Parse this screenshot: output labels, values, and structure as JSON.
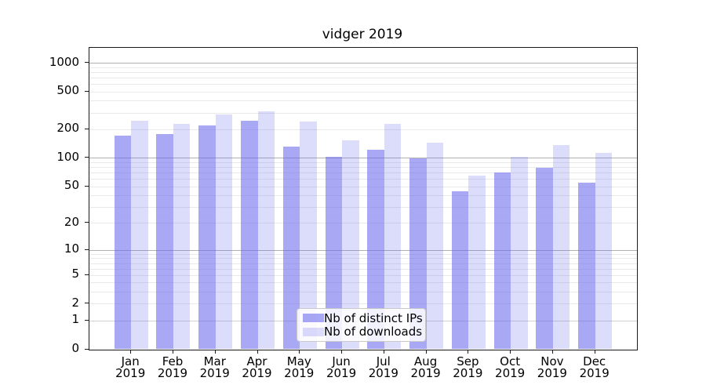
{
  "title": "vidger 2019",
  "colors": {
    "bar_distinct_ips": "rgba(102,102,238,0.57)",
    "bar_downloads": "rgba(102,102,238,0.23)",
    "grid_major": "#b0b0b0",
    "grid_unit": "#d0d0d0",
    "grid_minor": "#e9e9e9",
    "spine": "#1a1a1a",
    "text": "#000000",
    "legend_border": "#c9c9c9"
  },
  "x_axis": {
    "months": [
      "Jan",
      "Feb",
      "Mar",
      "Apr",
      "May",
      "Jun",
      "Jul",
      "Aug",
      "Sep",
      "Oct",
      "Nov",
      "Dec"
    ],
    "year": "2019"
  },
  "y_axis": {
    "ticks": [
      {
        "value": 0,
        "label": "0"
      },
      {
        "value": 1,
        "label": "1"
      },
      {
        "value": 2,
        "label": "2"
      },
      {
        "value": 5,
        "label": "5"
      },
      {
        "value": 10,
        "label": "10"
      },
      {
        "value": 20,
        "label": "20"
      },
      {
        "value": 50,
        "label": "50"
      },
      {
        "value": 100,
        "label": "100"
      },
      {
        "value": 200,
        "label": "200"
      },
      {
        "value": 500,
        "label": "500"
      },
      {
        "value": 1000,
        "label": "1000"
      }
    ]
  },
  "legend": {
    "items": [
      {
        "key": "distinct-ips",
        "label": "Nb of distinct IPs",
        "color": "rgba(102,102,238,0.57)"
      },
      {
        "key": "downloads",
        "label": "Nb of downloads",
        "color": "rgba(102,102,238,0.23)"
      }
    ]
  },
  "chart_data": {
    "type": "bar",
    "title": "vidger 2019",
    "categories": [
      "Jan 2019",
      "Feb 2019",
      "Mar 2019",
      "Apr 2019",
      "May 2019",
      "Jun 2019",
      "Jul 2019",
      "Aug 2019",
      "Sep 2019",
      "Oct 2019",
      "Nov 2019",
      "Dec 2019"
    ],
    "series": [
      {
        "name": "Nb of distinct IPs",
        "key": "distinct-ips",
        "color": "rgba(102,102,238,0.57)",
        "values": [
          172,
          178,
          219,
          248,
          132,
          102,
          122,
          98,
          44,
          70,
          79,
          55
        ]
      },
      {
        "name": "Nb of downloads",
        "key": "downloads",
        "color": "rgba(102,102,238,0.23)",
        "values": [
          245,
          227,
          285,
          308,
          240,
          152,
          230,
          145,
          65,
          103,
          137,
          112
        ]
      }
    ],
    "xlabel": "",
    "ylabel": "",
    "yscale": "log10(value+1)",
    "yticks": [
      0,
      1,
      2,
      5,
      10,
      20,
      50,
      100,
      200,
      500,
      1000
    ],
    "ylim": [
      0,
      1450
    ],
    "grid": true,
    "gridlines": {
      "major": [
        10,
        100,
        1000
      ],
      "unit": [
        1
      ],
      "minor": [
        2,
        3,
        4,
        5,
        6,
        7,
        8,
        9,
        20,
        30,
        40,
        50,
        60,
        70,
        80,
        90,
        200,
        300,
        400,
        500,
        600,
        700,
        800,
        900
      ]
    },
    "legend_position": "lower-center"
  }
}
